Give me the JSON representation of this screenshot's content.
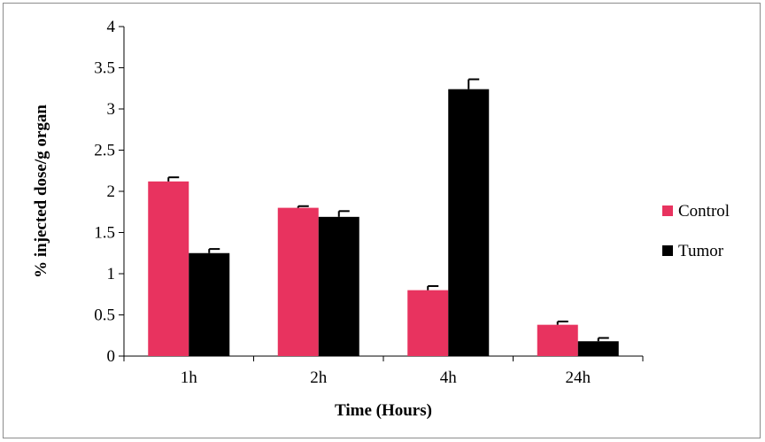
{
  "chart_data": {
    "type": "bar",
    "title": "",
    "xlabel": "Time (Hours)",
    "ylabel": "% injected dose/g organ",
    "categories": [
      "1h",
      "2h",
      "4h",
      "24h"
    ],
    "ylim": [
      0,
      4
    ],
    "yticks": [
      "0",
      "0.5",
      "1",
      "1.5",
      "2",
      "2.5",
      "3",
      "3.5",
      "4"
    ],
    "grid": false,
    "legend_position": "right",
    "series": [
      {
        "name": "Control",
        "color": "#e8335f",
        "values": [
          2.12,
          1.8,
          0.8,
          0.38
        ],
        "errors": [
          0.05,
          0.02,
          0.05,
          0.04
        ]
      },
      {
        "name": "Tumor",
        "color": "#000000",
        "values": [
          1.25,
          1.69,
          3.24,
          0.18
        ],
        "errors": [
          0.05,
          0.07,
          0.12,
          0.04
        ]
      }
    ]
  }
}
